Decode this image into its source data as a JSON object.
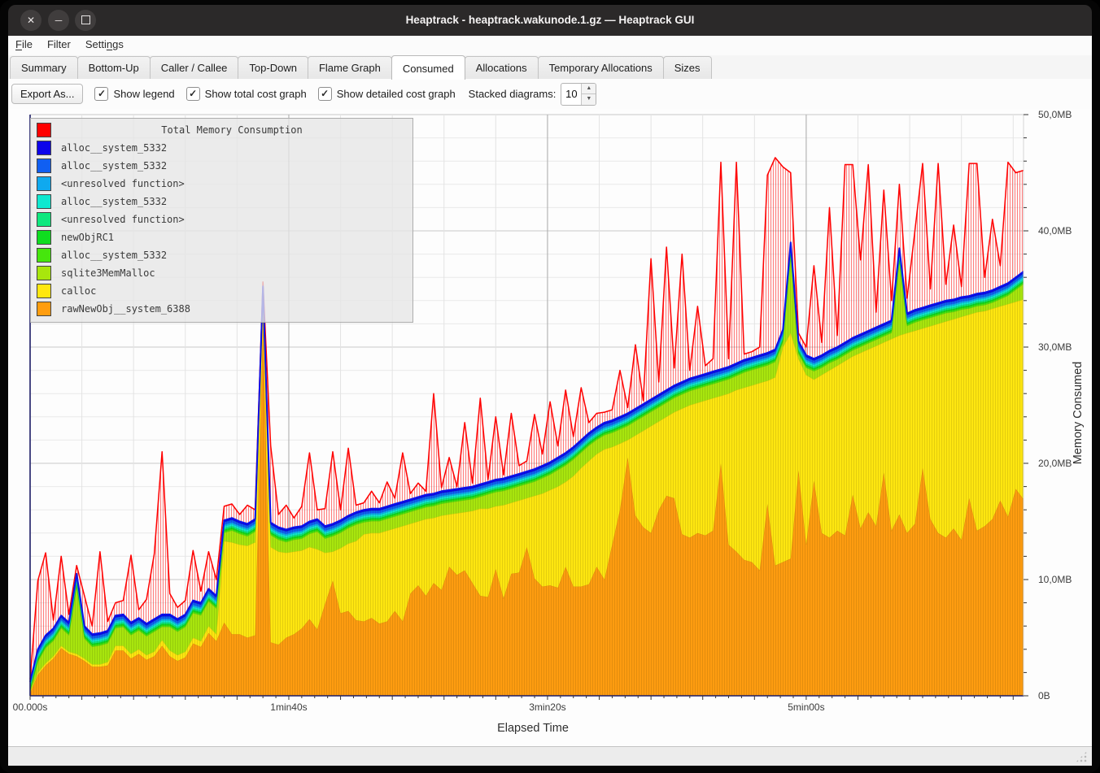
{
  "window": {
    "title": "Heaptrack - heaptrack.wakunode.1.gz — Heaptrack GUI",
    "controls": [
      "close",
      "minimize",
      "maximize"
    ]
  },
  "menu_bar": {
    "items": [
      {
        "label": "File",
        "underline_index": 0
      },
      {
        "label": "Filter",
        "underline_index": -1
      },
      {
        "label": "Settings",
        "underline_index": 5
      }
    ]
  },
  "tabs": {
    "items": [
      "Summary",
      "Bottom-Up",
      "Caller / Callee",
      "Top-Down",
      "Flame Graph",
      "Consumed",
      "Allocations",
      "Temporary Allocations",
      "Sizes"
    ],
    "active": "Consumed"
  },
  "toolbar": {
    "export_button": "Export As...",
    "checkboxes": [
      {
        "label": "Show legend",
        "checked": true
      },
      {
        "label": "Show total cost graph",
        "checked": true
      },
      {
        "label": "Show detailed cost graph",
        "checked": true
      }
    ],
    "stacked_label": "Stacked diagrams:",
    "stacked_value": "10"
  },
  "chart_data": {
    "type": "area",
    "title": "Total Memory Consumption",
    "xlabel": "Elapsed Time",
    "ylabel": "Memory Consumed",
    "x_ticks": [
      "00.000s",
      "1min40s",
      "3min20s",
      "5min00s"
    ],
    "x_tick_seconds": [
      0,
      100,
      200,
      300
    ],
    "x_max_seconds": 384,
    "y_ticks": [
      "0B",
      "10,0MB",
      "20,0MB",
      "30,0MB",
      "40,0MB",
      "50,0MB"
    ],
    "y_tick_mb": [
      0,
      10,
      20,
      30,
      40,
      50
    ],
    "y_max_mb": 50,
    "grid": {
      "x_minor_step_s": 20,
      "y_minor_step_mb": 2
    },
    "sample_step_seconds": 3,
    "legend": [
      {
        "label": "Total Memory Consumption",
        "color": "#ff0000",
        "is_title": true
      },
      {
        "label": "alloc__system_5332",
        "color": "#0d04ea"
      },
      {
        "label": "alloc__system_5332",
        "color": "#105ff2"
      },
      {
        "label": "<unresolved function>",
        "color": "#0fa9ef"
      },
      {
        "label": "alloc__system_5332",
        "color": "#0fe8d0"
      },
      {
        "label": "<unresolved function>",
        "color": "#0fe87e"
      },
      {
        "label": "newObjRC1",
        "color": "#0fdd1f"
      },
      {
        "label": "alloc__system_5332",
        "color": "#46e60d"
      },
      {
        "label": "sqlite3MemMalloc",
        "color": "#a8e60d"
      },
      {
        "label": "calloc",
        "color": "#ffe70f"
      },
      {
        "label": "rawNewObj__system_6388",
        "color": "#ff9d0f"
      }
    ],
    "total": {
      "name": "Total Memory Consumption",
      "color": "#ff0000",
      "values": [
        1.4,
        9.9,
        12.3,
        6.5,
        12.0,
        7.0,
        11.2,
        8.6,
        6.0,
        12.4,
        6.4,
        8.0,
        8.2,
        12.1,
        7.4,
        8.3,
        12.2,
        21.0,
        8.8,
        7.6,
        8.2,
        12.5,
        9.0,
        12.4,
        10.0,
        16.3,
        16.5,
        15.6,
        16.4,
        16.0,
        35.6,
        21.5,
        15.6,
        16.4,
        15.3,
        16.3,
        20.9,
        16.0,
        16.1,
        21.0,
        16.0,
        21.3,
        16.4,
        16.6,
        17.6,
        16.6,
        18.4,
        17.0,
        20.9,
        17.4,
        18.3,
        17.6,
        26.0,
        17.9,
        20.5,
        18.0,
        23.5,
        18.3,
        25.6,
        18.6,
        24.0,
        19.0,
        24.3,
        19.8,
        20.2,
        24.2,
        20.8,
        25.3,
        21.5,
        26.3,
        22.3,
        26.5,
        23.5,
        24.3,
        24.4,
        24.6,
        28.0,
        24.8,
        30.2,
        25.4,
        37.6,
        27.0,
        38.6,
        28.2,
        38.0,
        28.0,
        33.5,
        28.4,
        29.0,
        45.9,
        29.0,
        45.9,
        29.4,
        29.6,
        30.0,
        44.8,
        46.3,
        45.5,
        45.0,
        31.2,
        30.0,
        37.0,
        30.4,
        42.0,
        31.0,
        45.7,
        45.7,
        37.5,
        45.7,
        33.0,
        43.5,
        34.0,
        44.0,
        34.2,
        40.0,
        45.8,
        35.0,
        45.8,
        35.4,
        40.5,
        35.2,
        45.8,
        45.8,
        36.0,
        41.0,
        37.0,
        45.9,
        45.0,
        45.2
      ]
    },
    "stack_top_mb": [
      1.2,
      4.0,
      5.2,
      5.8,
      6.9,
      6.3,
      10.5,
      6.0,
      5.3,
      5.4,
      5.6,
      6.9,
      7.0,
      6.3,
      6.7,
      6.2,
      6.6,
      7.0,
      7.0,
      6.6,
      7.0,
      8.2,
      8.0,
      9.2,
      8.6,
      15.1,
      15.3,
      15.0,
      14.8,
      15.2,
      35.2,
      14.9,
      14.5,
      14.3,
      14.5,
      14.6,
      15.0,
      15.2,
      14.6,
      14.8,
      15.1,
      15.5,
      15.8,
      16.0,
      16.1,
      16.1,
      16.3,
      16.5,
      16.7,
      16.9,
      17.1,
      17.3,
      17.4,
      17.6,
      17.7,
      17.8,
      17.9,
      18.0,
      18.2,
      18.4,
      18.6,
      18.7,
      18.9,
      19.1,
      19.3,
      19.5,
      19.8,
      20.1,
      20.5,
      20.9,
      21.4,
      22.0,
      22.6,
      23.1,
      23.5,
      23.7,
      24.0,
      24.3,
      24.7,
      25.1,
      25.5,
      25.9,
      26.3,
      26.7,
      27.0,
      27.3,
      27.5,
      27.7,
      27.9,
      28.1,
      28.3,
      28.6,
      28.9,
      29.1,
      29.3,
      29.5,
      29.8,
      31.5,
      39.0,
      30.5,
      29.3,
      29.0,
      29.3,
      29.7,
      30.0,
      30.4,
      30.8,
      31.1,
      31.4,
      31.7,
      32.0,
      32.3,
      38.5,
      32.9,
      33.2,
      33.4,
      33.6,
      33.8,
      34.0,
      34.1,
      34.3,
      34.4,
      34.6,
      34.7,
      34.9,
      35.2,
      35.5,
      36.0,
      36.5
    ],
    "series_bottom_up": [
      {
        "name": "rawNewObj__system_6388",
        "color": "#ff9d0f",
        "values": [
          0.2,
          1.8,
          2.6,
          3.2,
          4.1,
          3.6,
          3.4,
          3.0,
          2.5,
          2.5,
          2.6,
          3.9,
          3.9,
          3.2,
          3.6,
          3.1,
          3.4,
          4.3,
          3.4,
          3.0,
          3.3,
          4.5,
          4.2,
          5.4,
          4.7,
          6.3,
          5.3,
          5.3,
          5.0,
          5.2,
          32,
          4.6,
          4.4,
          5.0,
          5.3,
          5.8,
          6.6,
          5.7,
          7.9,
          9.9,
          7.1,
          7.3,
          6.5,
          6.4,
          6.7,
          6.2,
          6.4,
          7.3,
          6.4,
          8.8,
          9.5,
          8.6,
          9.7,
          9.1,
          11.1,
          10.4,
          10.8,
          9.7,
          8.6,
          8.5,
          10.9,
          8.4,
          10.5,
          10.6,
          12.8,
          10.1,
          9.4,
          9.5,
          9.3,
          11.1,
          9.4,
          9.4,
          9.6,
          11.1,
          10.0,
          13.0,
          16.0,
          20.5,
          15.5,
          14.5,
          14.0,
          16.0,
          17.2,
          17.0,
          13.9,
          13.6,
          14.0,
          13.8,
          14.2,
          20.0,
          13.0,
          12.4,
          11.7,
          11.5,
          10.8,
          16.5,
          11.2,
          11.5,
          11.8,
          19.4,
          13.0,
          18.5,
          14.0,
          13.6,
          14.2,
          13.8,
          17.3,
          14.4,
          15.8,
          14.6,
          19.2,
          14.2,
          15.6,
          14.0,
          14.8,
          19.6,
          15.2,
          14.0,
          13.6,
          14.4,
          13.4,
          17.0,
          14.2,
          14.6,
          15.2,
          16.8,
          15.4,
          17.8,
          16.9
        ]
      },
      {
        "name": "calloc",
        "color": "#ffe70f",
        "values": [
          0.1,
          0.2,
          0.2,
          0.2,
          0.2,
          0.2,
          0.2,
          0.2,
          0.2,
          0.2,
          0.3,
          0.4,
          0.4,
          0.4,
          0.4,
          0.4,
          0.4,
          0.5,
          0.5,
          0.5,
          0.5,
          0.5,
          0.5,
          0.6,
          0.6,
          7.0,
          7.9,
          7.7,
          7.9,
          8.0,
          2.2,
          8.2,
          8.0,
          7.3,
          7.1,
          6.7,
          6.2,
          6.9,
          4.4,
          2.5,
          5.6,
          5.8,
          6.8,
          7.5,
          7.3,
          7.8,
          7.8,
          7.1,
          8.2,
          6.0,
          5.5,
          6.6,
          5.6,
          6.4,
          4.5,
          5.3,
          5.0,
          6.2,
          7.5,
          7.6,
          5.4,
          8.0,
          6.1,
          6.2,
          4.2,
          7.1,
          8.0,
          8.2,
          8.7,
          7.3,
          9.5,
          10.2,
          10.6,
          9.7,
          11.2,
          8.4,
          5.7,
          1.5,
          6.9,
          8.3,
          9.2,
          7.6,
          6.8,
          7.4,
          10.8,
          11.4,
          11.2,
          11.6,
          11.4,
          5.8,
          13.0,
          13.9,
          14.8,
          15.2,
          16.1,
          10.6,
          16.2,
          18.5,
          19.4,
          9.6,
          14.6,
          8.7,
          13.6,
          14.4,
          14.2,
          15.0,
          11.9,
          15.1,
          14.0,
          15.5,
          11.2,
          16.5,
          15.4,
          17.2,
          16.6,
          12.0,
          16.6,
          18.0,
          18.6,
          18.0,
          19.2,
          15.8,
          18.8,
          18.5,
          18.1,
          16.7,
          18.3,
          16.1,
          17.2
        ]
      },
      {
        "name": "sqlite3MemMalloc",
        "color": "#a8e60d",
        "fills_to_stack_top": true
      },
      {
        "name": "alloc__system_5332",
        "color": "#46e60d",
        "thickness_mb": 0.14
      },
      {
        "name": "newObjRC1",
        "color": "#0fdd1f",
        "thickness_mb": 0.12
      },
      {
        "name": "<unresolved function>",
        "color": "#0fe87e",
        "thickness_mb": 0.14
      },
      {
        "name": "alloc__system_5332",
        "color": "#0fe8d0",
        "thickness_mb": 0.16
      },
      {
        "name": "<unresolved function>",
        "color": "#0fa9ef",
        "thickness_mb": 0.14
      },
      {
        "name": "alloc__system_5332",
        "color": "#105ff2",
        "thickness_mb": 0.22
      },
      {
        "name": "alloc__system_5332",
        "color": "#0d04ea",
        "thickness_mb": 0.16
      }
    ]
  }
}
